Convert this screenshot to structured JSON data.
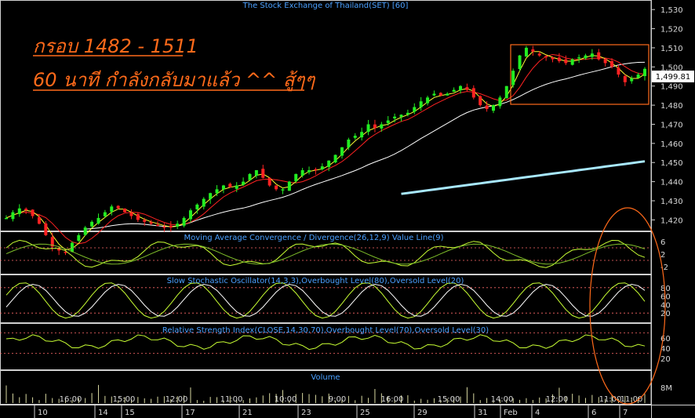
{
  "chart_data": [
    {
      "type": "candlestick",
      "title": "The Stock Exchange of Thailand(SET) [60]",
      "annotation_line1": "กรอบ 1482 - 1511",
      "annotation_line2": "60 นาที กำลังกลับมาแล้ว ^^ สู้ๆๆ",
      "y_ticks": [
        1420,
        1430,
        1440,
        1450,
        1460,
        1470,
        1480,
        1490,
        1500,
        1510,
        1520,
        1530
      ],
      "ylim": [
        1414,
        1535
      ],
      "last_price": "1,499.81",
      "range_box": [
        1482,
        1511
      ],
      "closes": [
        1421,
        1424,
        1426,
        1425,
        1422,
        1418,
        1412,
        1406,
        1404,
        1403,
        1408,
        1412,
        1416,
        1419,
        1421,
        1424,
        1427,
        1426,
        1424,
        1422,
        1420,
        1419,
        1418,
        1417,
        1416,
        1416,
        1418,
        1421,
        1425,
        1428,
        1431,
        1434,
        1436,
        1438,
        1437,
        1438,
        1440,
        1444,
        1446,
        1442,
        1438,
        1436,
        1436,
        1440,
        1444,
        1446,
        1446,
        1446,
        1448,
        1451,
        1454,
        1458,
        1462,
        1464,
        1466,
        1470,
        1468,
        1470,
        1472,
        1474,
        1475,
        1476,
        1479,
        1482,
        1484,
        1486,
        1485,
        1486,
        1488,
        1490,
        1488,
        1484,
        1480,
        1478,
        1480,
        1484,
        1490,
        1498,
        1506,
        1510,
        1508,
        1506,
        1505,
        1504,
        1503,
        1502,
        1504,
        1505,
        1506,
        1507,
        1504,
        1502,
        1500,
        1496,
        1492,
        1494,
        1496,
        1499
      ]
    },
    {
      "type": "line",
      "title": "Moving Average Convergence / Divergence(26,12,9) Value Line(9)",
      "y_ticks": [
        6,
        2,
        -2
      ],
      "grid_lines": [
        4,
        0
      ]
    },
    {
      "type": "line",
      "title": "Slow Stochastic Oscillator(14,3,3),Overbought Level(80),Oversold Level(20)",
      "y_ticks": [
        80,
        60,
        40,
        20
      ],
      "levels": [
        80,
        20
      ]
    },
    {
      "type": "line",
      "title": "Relative Strength Index(CLOSE,14,30,70),Overbought Level(70),Oversold Level(30)",
      "y_ticks": [
        60,
        40,
        20
      ],
      "levels": [
        70,
        30
      ]
    },
    {
      "type": "bar",
      "title": "Volume",
      "y_ticks": [
        "8M"
      ]
    }
  ],
  "x_axis": {
    "date_labels": [
      "10",
      "14",
      "15",
      "17",
      "21",
      "23",
      "25",
      "29",
      "31",
      "Feb",
      "4",
      "6",
      "7"
    ],
    "time_labels": [
      "16:00",
      "15:00",
      "12:00",
      "11:00",
      "10:00",
      "9:00",
      "16:00",
      "15:00",
      "14:00",
      "12:00",
      "11:00",
      "11:00"
    ]
  },
  "colors": {
    "up_candle": "#22ee22",
    "down_candle": "#ff2222",
    "ma_fast": "#ffff33",
    "ma_mid": "#ff2222",
    "ma_slow": "#ffffff",
    "ma_long": "#a8e8ff",
    "indicator_line": "#c8ff33",
    "annotation": "#ff6a1a",
    "title": "#4aa0ff"
  }
}
